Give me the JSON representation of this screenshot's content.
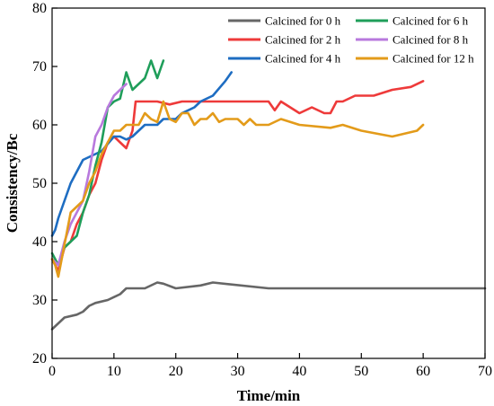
{
  "chart_data": {
    "type": "line",
    "xlabel": "Time/min",
    "ylabel": "Consistency/Bc",
    "xlim": [
      0,
      70
    ],
    "ylim": [
      20,
      80
    ],
    "xticks": [
      0,
      10,
      20,
      30,
      40,
      50,
      60,
      70
    ],
    "yticks": [
      20,
      30,
      40,
      50,
      60,
      70,
      80
    ],
    "grid": false,
    "legend_position": "top-right",
    "series": [
      {
        "name": "Calcined for 0 h",
        "color": "#666666",
        "points": [
          [
            0,
            25
          ],
          [
            1,
            26
          ],
          [
            2,
            27
          ],
          [
            4,
            27.5
          ],
          [
            5,
            28
          ],
          [
            6,
            29
          ],
          [
            7,
            29.5
          ],
          [
            9,
            30
          ],
          [
            11,
            31
          ],
          [
            12,
            32
          ],
          [
            15,
            32
          ],
          [
            17,
            33
          ],
          [
            18,
            32.8
          ],
          [
            20,
            32
          ],
          [
            24,
            32.5
          ],
          [
            26,
            33
          ],
          [
            35,
            32
          ],
          [
            60,
            32
          ],
          [
            70,
            32
          ]
        ]
      },
      {
        "name": "Calcined for 2 h",
        "color": "#ee3a3a",
        "points": [
          [
            0,
            37
          ],
          [
            1,
            35
          ],
          [
            2,
            39
          ],
          [
            3,
            40
          ],
          [
            4,
            43
          ],
          [
            5,
            45
          ],
          [
            6,
            48
          ],
          [
            7,
            50
          ],
          [
            8,
            54
          ],
          [
            9,
            57
          ],
          [
            10,
            58
          ],
          [
            11,
            57
          ],
          [
            12,
            56
          ],
          [
            13,
            59
          ],
          [
            13.5,
            64
          ],
          [
            15,
            64
          ],
          [
            17,
            64
          ],
          [
            19,
            63.5
          ],
          [
            21,
            64
          ],
          [
            25,
            64
          ],
          [
            30,
            64
          ],
          [
            35,
            64
          ],
          [
            36,
            62.5
          ],
          [
            37,
            64
          ],
          [
            40,
            62
          ],
          [
            42,
            63
          ],
          [
            44,
            62
          ],
          [
            45,
            62
          ],
          [
            46,
            64
          ],
          [
            47,
            64
          ],
          [
            49,
            65
          ],
          [
            52,
            65
          ],
          [
            55,
            66
          ],
          [
            58,
            66.5
          ],
          [
            60,
            67.5
          ]
        ]
      },
      {
        "name": "Calcined for 4 h",
        "color": "#1e6dc2",
        "points": [
          [
            0,
            41
          ],
          [
            0.5,
            42
          ],
          [
            1,
            44
          ],
          [
            3,
            50
          ],
          [
            5,
            54
          ],
          [
            7,
            55
          ],
          [
            8,
            55.5
          ],
          [
            10,
            58
          ],
          [
            11,
            58
          ],
          [
            12,
            57.5
          ],
          [
            13,
            58
          ],
          [
            15,
            60
          ],
          [
            17,
            60
          ],
          [
            18,
            61
          ],
          [
            20,
            61
          ],
          [
            21,
            62
          ],
          [
            22,
            62.5
          ],
          [
            23,
            63
          ],
          [
            24,
            64
          ],
          [
            26,
            65
          ],
          [
            28,
            67.5
          ],
          [
            29,
            69
          ]
        ]
      },
      {
        "name": "Calcined for 6 h",
        "color": "#1f9e5a",
        "points": [
          [
            0,
            38
          ],
          [
            1,
            36
          ],
          [
            2,
            39
          ],
          [
            3,
            40
          ],
          [
            4,
            41
          ],
          [
            5,
            45
          ],
          [
            6,
            48
          ],
          [
            7,
            53
          ],
          [
            8,
            57
          ],
          [
            9,
            63
          ],
          [
            10,
            64
          ],
          [
            11,
            64.5
          ],
          [
            12,
            69
          ],
          [
            13,
            66
          ],
          [
            15,
            68
          ],
          [
            16,
            71
          ],
          [
            17,
            68
          ],
          [
            18,
            71
          ]
        ]
      },
      {
        "name": "Calcined for 8 h",
        "color": "#b879dd",
        "points": [
          [
            0,
            37
          ],
          [
            1,
            36
          ],
          [
            2,
            40
          ],
          [
            3,
            43
          ],
          [
            4,
            45
          ],
          [
            5,
            47
          ],
          [
            6,
            52
          ],
          [
            7,
            58
          ],
          [
            8,
            60
          ],
          [
            9,
            63
          ],
          [
            10,
            65
          ],
          [
            11,
            66
          ],
          [
            12,
            67
          ]
        ]
      },
      {
        "name": "Calcined for 12 h",
        "color": "#e39b1a",
        "points": [
          [
            0,
            37
          ],
          [
            0.5,
            36
          ],
          [
            1,
            34
          ],
          [
            3,
            45
          ],
          [
            5,
            47
          ],
          [
            6,
            50
          ],
          [
            7,
            52
          ],
          [
            8,
            55
          ],
          [
            9,
            57
          ],
          [
            10,
            59
          ],
          [
            11,
            59
          ],
          [
            12,
            60
          ],
          [
            13,
            60
          ],
          [
            14,
            60
          ],
          [
            15,
            62
          ],
          [
            16,
            61
          ],
          [
            17,
            60.5
          ],
          [
            18,
            64
          ],
          [
            19,
            61
          ],
          [
            20,
            60.5
          ],
          [
            21,
            62
          ],
          [
            22,
            62
          ],
          [
            23,
            60
          ],
          [
            24,
            61
          ],
          [
            25,
            61
          ],
          [
            26,
            62
          ],
          [
            27,
            60.5
          ],
          [
            28,
            61
          ],
          [
            30,
            61
          ],
          [
            31,
            60
          ],
          [
            32,
            61
          ],
          [
            33,
            60
          ],
          [
            35,
            60
          ],
          [
            37,
            61
          ],
          [
            40,
            60
          ],
          [
            45,
            59.5
          ],
          [
            47,
            60
          ],
          [
            50,
            59
          ],
          [
            55,
            58
          ],
          [
            59,
            59
          ],
          [
            60,
            60
          ]
        ]
      }
    ]
  }
}
